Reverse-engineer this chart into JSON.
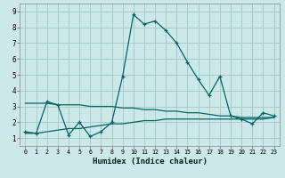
{
  "xlabel": "Humidex (Indice chaleur)",
  "bg_color": "#cce8e8",
  "grid_color": "#aacccc",
  "line_color": "#006666",
  "xlim": [
    -0.5,
    23.5
  ],
  "ylim": [
    0.5,
    9.5
  ],
  "x_ticks": [
    0,
    1,
    2,
    3,
    4,
    5,
    6,
    7,
    8,
    9,
    10,
    11,
    12,
    13,
    14,
    15,
    16,
    17,
    18,
    19,
    20,
    21,
    22,
    23
  ],
  "y_ticks": [
    1,
    2,
    3,
    4,
    5,
    6,
    7,
    8,
    9
  ],
  "line1_x": [
    0,
    1,
    2,
    3,
    4,
    5,
    6,
    7,
    8,
    9,
    10,
    11,
    12,
    13,
    14,
    15,
    16,
    17,
    18,
    19,
    20,
    21,
    22,
    23
  ],
  "line1_y": [
    1.4,
    1.3,
    3.3,
    3.1,
    1.2,
    2.0,
    1.1,
    1.4,
    2.0,
    4.9,
    8.8,
    8.2,
    8.4,
    7.8,
    7.0,
    5.8,
    4.7,
    3.7,
    4.9,
    2.4,
    2.2,
    1.9,
    2.6,
    2.4
  ],
  "line2_x": [
    0,
    1,
    2,
    3,
    4,
    5,
    6,
    7,
    8,
    9,
    10,
    11,
    12,
    13,
    14,
    15,
    16,
    17,
    18,
    19,
    20,
    21,
    22,
    23
  ],
  "line2_y": [
    3.2,
    3.2,
    3.2,
    3.1,
    3.1,
    3.1,
    3.0,
    3.0,
    3.0,
    2.9,
    2.9,
    2.8,
    2.8,
    2.7,
    2.7,
    2.6,
    2.6,
    2.5,
    2.4,
    2.4,
    2.3,
    2.3,
    2.3,
    2.3
  ],
  "line3_x": [
    0,
    1,
    2,
    3,
    4,
    5,
    6,
    7,
    8,
    9,
    10,
    11,
    12,
    13,
    14,
    15,
    16,
    17,
    18,
    19,
    20,
    21,
    22,
    23
  ],
  "line3_y": [
    1.3,
    1.3,
    1.4,
    1.5,
    1.6,
    1.6,
    1.7,
    1.8,
    1.9,
    1.9,
    2.0,
    2.1,
    2.1,
    2.2,
    2.2,
    2.2,
    2.2,
    2.2,
    2.2,
    2.2,
    2.2,
    2.2,
    2.2,
    2.3
  ]
}
